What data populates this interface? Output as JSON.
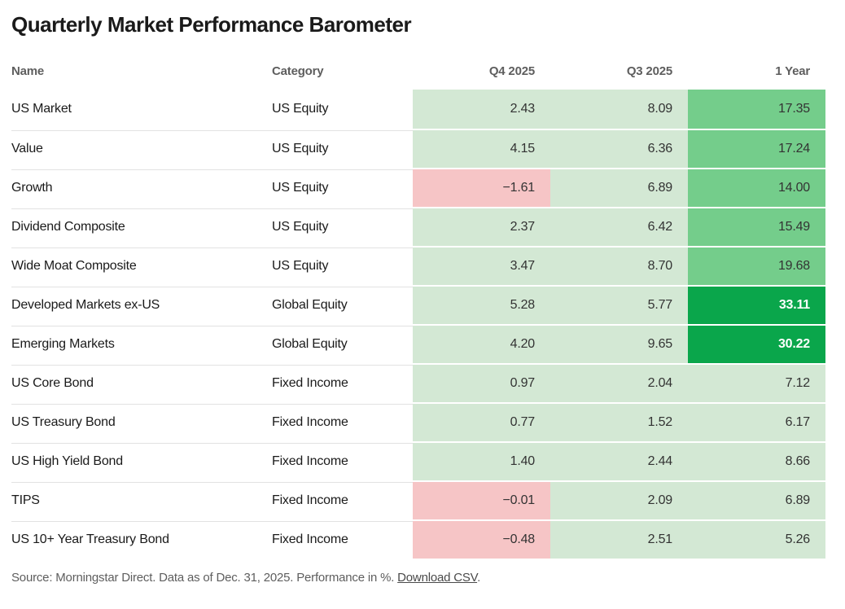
{
  "title": "Quarterly Market Performance Barometer",
  "columns": [
    "Name",
    "Category",
    "Q4 2025",
    "Q3 2025",
    "1 Year"
  ],
  "rows": [
    {
      "name": "US Market",
      "category": "US Equity",
      "values": [
        "2.43",
        "8.09",
        "17.35"
      ],
      "levels": [
        "light",
        "light",
        "mid"
      ]
    },
    {
      "name": "Value",
      "category": "US Equity",
      "values": [
        "4.15",
        "6.36",
        "17.24"
      ],
      "levels": [
        "light",
        "light",
        "mid"
      ]
    },
    {
      "name": "Growth",
      "category": "US Equity",
      "values": [
        "−1.61",
        "6.89",
        "14.00"
      ],
      "levels": [
        "neg",
        "light",
        "mid"
      ]
    },
    {
      "name": "Dividend Composite",
      "category": "US Equity",
      "values": [
        "2.37",
        "6.42",
        "15.49"
      ],
      "levels": [
        "light",
        "light",
        "mid"
      ]
    },
    {
      "name": "Wide Moat Composite",
      "category": "US Equity",
      "values": [
        "3.47",
        "8.70",
        "19.68"
      ],
      "levels": [
        "light",
        "light",
        "mid"
      ]
    },
    {
      "name": "Developed Markets ex-US",
      "category": "Global Equity",
      "values": [
        "5.28",
        "5.77",
        "33.11"
      ],
      "levels": [
        "light",
        "light",
        "dark"
      ]
    },
    {
      "name": "Emerging Markets",
      "category": "Global Equity",
      "values": [
        "4.20",
        "9.65",
        "30.22"
      ],
      "levels": [
        "light",
        "light",
        "dark"
      ]
    },
    {
      "name": "US Core Bond",
      "category": "Fixed Income",
      "values": [
        "0.97",
        "2.04",
        "7.12"
      ],
      "levels": [
        "light",
        "light",
        "light"
      ]
    },
    {
      "name": "US Treasury Bond",
      "category": "Fixed Income",
      "values": [
        "0.77",
        "1.52",
        "6.17"
      ],
      "levels": [
        "light",
        "light",
        "light"
      ]
    },
    {
      "name": "US High Yield Bond",
      "category": "Fixed Income",
      "values": [
        "1.40",
        "2.44",
        "8.66"
      ],
      "levels": [
        "light",
        "light",
        "light"
      ]
    },
    {
      "name": "TIPS",
      "category": "Fixed Income",
      "values": [
        "−0.01",
        "2.09",
        "6.89"
      ],
      "levels": [
        "neg",
        "light",
        "light"
      ]
    },
    {
      "name": "US 10+ Year Treasury Bond",
      "category": "Fixed Income",
      "values": [
        "−0.48",
        "2.51",
        "5.26"
      ],
      "levels": [
        "neg",
        "light",
        "light"
      ]
    }
  ],
  "colors": {
    "light": "#d3e8d4",
    "mid": "#74cd8b",
    "dark": "#0aa64b",
    "neg": "#f6c5c6",
    "dark_text": "#ffffff"
  },
  "footer": {
    "text": "Source: Morningstar Direct. Data as of Dec. 31, 2025. Performance in %. ",
    "link_label": "Download CSV",
    "suffix": "."
  },
  "chart_data": {
    "type": "heatmap",
    "title": "Quarterly Market Performance Barometer",
    "columns": [
      "Q4 2025",
      "Q3 2025",
      "1 Year"
    ],
    "unit": "%",
    "series": [
      {
        "name": "US Market",
        "category": "US Equity",
        "values": [
          2.43,
          8.09,
          17.35
        ]
      },
      {
        "name": "Value",
        "category": "US Equity",
        "values": [
          4.15,
          6.36,
          17.24
        ]
      },
      {
        "name": "Growth",
        "category": "US Equity",
        "values": [
          -1.61,
          6.89,
          14.0
        ]
      },
      {
        "name": "Dividend Composite",
        "category": "US Equity",
        "values": [
          2.37,
          6.42,
          15.49
        ]
      },
      {
        "name": "Wide Moat Composite",
        "category": "US Equity",
        "values": [
          3.47,
          8.7,
          19.68
        ]
      },
      {
        "name": "Developed Markets ex-US",
        "category": "Global Equity",
        "values": [
          5.28,
          5.77,
          33.11
        ]
      },
      {
        "name": "Emerging Markets",
        "category": "Global Equity",
        "values": [
          4.2,
          9.65,
          30.22
        ]
      },
      {
        "name": "US Core Bond",
        "category": "Fixed Income",
        "values": [
          0.97,
          2.04,
          7.12
        ]
      },
      {
        "name": "US Treasury Bond",
        "category": "Fixed Income",
        "values": [
          0.77,
          1.52,
          6.17
        ]
      },
      {
        "name": "US High Yield Bond",
        "category": "Fixed Income",
        "values": [
          1.4,
          2.44,
          8.66
        ]
      },
      {
        "name": "TIPS",
        "category": "Fixed Income",
        "values": [
          -0.01,
          2.09,
          6.89
        ]
      },
      {
        "name": "US 10+ Year Treasury Bond",
        "category": "Fixed Income",
        "values": [
          -0.48,
          2.51,
          5.26
        ]
      }
    ],
    "legend_position": "none",
    "color_scale": "red-negative to green-positive"
  }
}
